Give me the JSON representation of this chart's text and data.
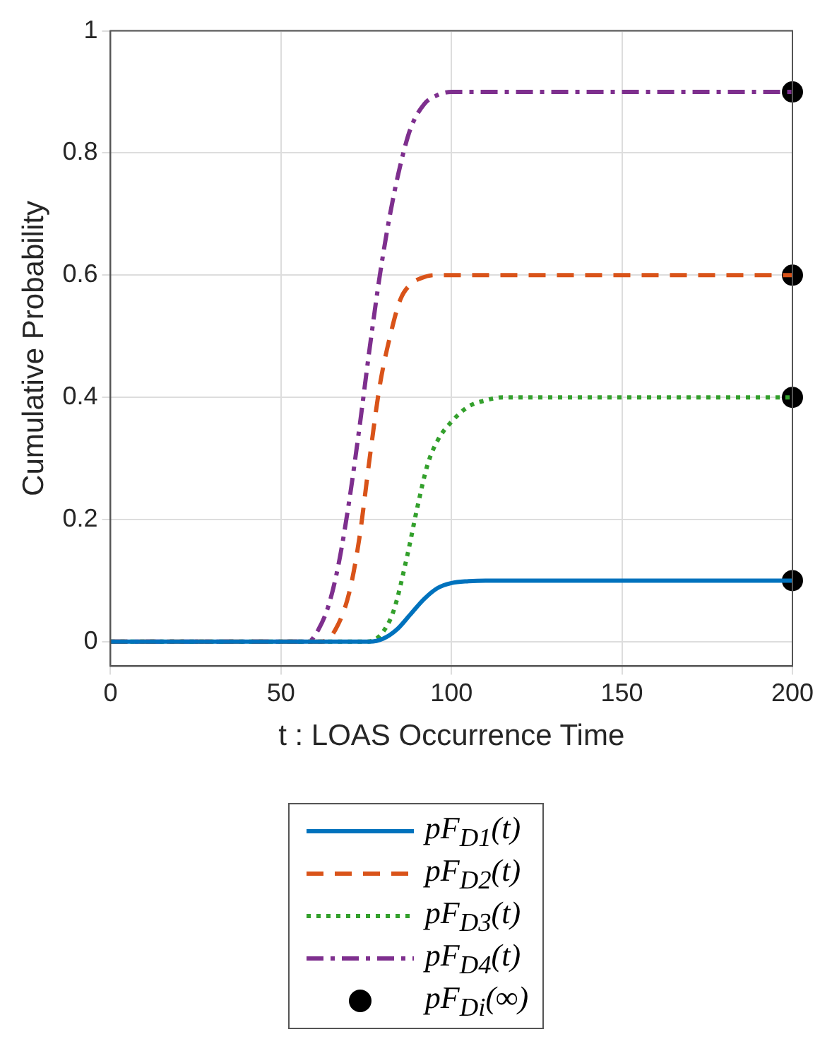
{
  "chart_data": {
    "type": "line",
    "xlabel": "t : LOAS Occurrence Time",
    "ylabel": "Cumulative Probability",
    "xlim": [
      0,
      200
    ],
    "xticks": [
      0,
      50,
      100,
      150,
      200
    ],
    "ylim": [
      -0.04,
      1
    ],
    "yticks": [
      0,
      0.2,
      0.4,
      0.6,
      0.8,
      1
    ],
    "grid": true,
    "legend": "bottom",
    "marker": "none",
    "series": [
      {
        "name": "pF$_{D1}$(t)",
        "color": "#0072bd",
        "line_style": "solid",
        "x": [
          0,
          76,
          80,
          84,
          88,
          92,
          96,
          100,
          105,
          110,
          120,
          200
        ],
        "values": [
          0,
          0,
          0.005,
          0.02,
          0.045,
          0.07,
          0.088,
          0.096,
          0.099,
          0.1,
          0.1,
          0.1
        ]
      },
      {
        "name": "pF$_{D2}$(t)",
        "color": "#d95319",
        "line_style": "dashed",
        "x": [
          0,
          62,
          66,
          70,
          73,
          76,
          79,
          82,
          85,
          88,
          91,
          95,
          100,
          200
        ],
        "values": [
          0,
          0,
          0.02,
          0.08,
          0.17,
          0.3,
          0.42,
          0.5,
          0.56,
          0.585,
          0.595,
          0.6,
          0.6,
          0.6
        ]
      },
      {
        "name": "pF$_{D3}$(t)",
        "color": "#33a02c",
        "line_style": "dotted",
        "x": [
          0,
          75,
          79,
          83,
          87,
          90,
          93,
          96,
          100,
          105,
          110,
          115,
          120,
          200
        ],
        "values": [
          0,
          0,
          0.01,
          0.05,
          0.14,
          0.22,
          0.29,
          0.33,
          0.36,
          0.385,
          0.395,
          0.4,
          0.4,
          0.4
        ]
      },
      {
        "name": "pF$_{D4}$(t)",
        "color": "#7e2f8e",
        "line_style": "dashdot",
        "x": [
          0,
          58,
          61,
          64,
          67,
          70,
          73,
          76,
          79,
          82,
          85,
          88,
          92,
          96,
          100,
          110,
          200
        ],
        "values": [
          0,
          0,
          0.02,
          0.06,
          0.13,
          0.23,
          0.35,
          0.48,
          0.6,
          0.7,
          0.78,
          0.84,
          0.88,
          0.895,
          0.9,
          0.9,
          0.9
        ]
      },
      {
        "name": "pF$_{Di}$(∞)",
        "type": "scatter",
        "color": "#000000",
        "marker": "circle",
        "x": [
          200,
          200,
          200,
          200
        ],
        "values": [
          0.1,
          0.6,
          0.4,
          0.9
        ]
      }
    ]
  }
}
